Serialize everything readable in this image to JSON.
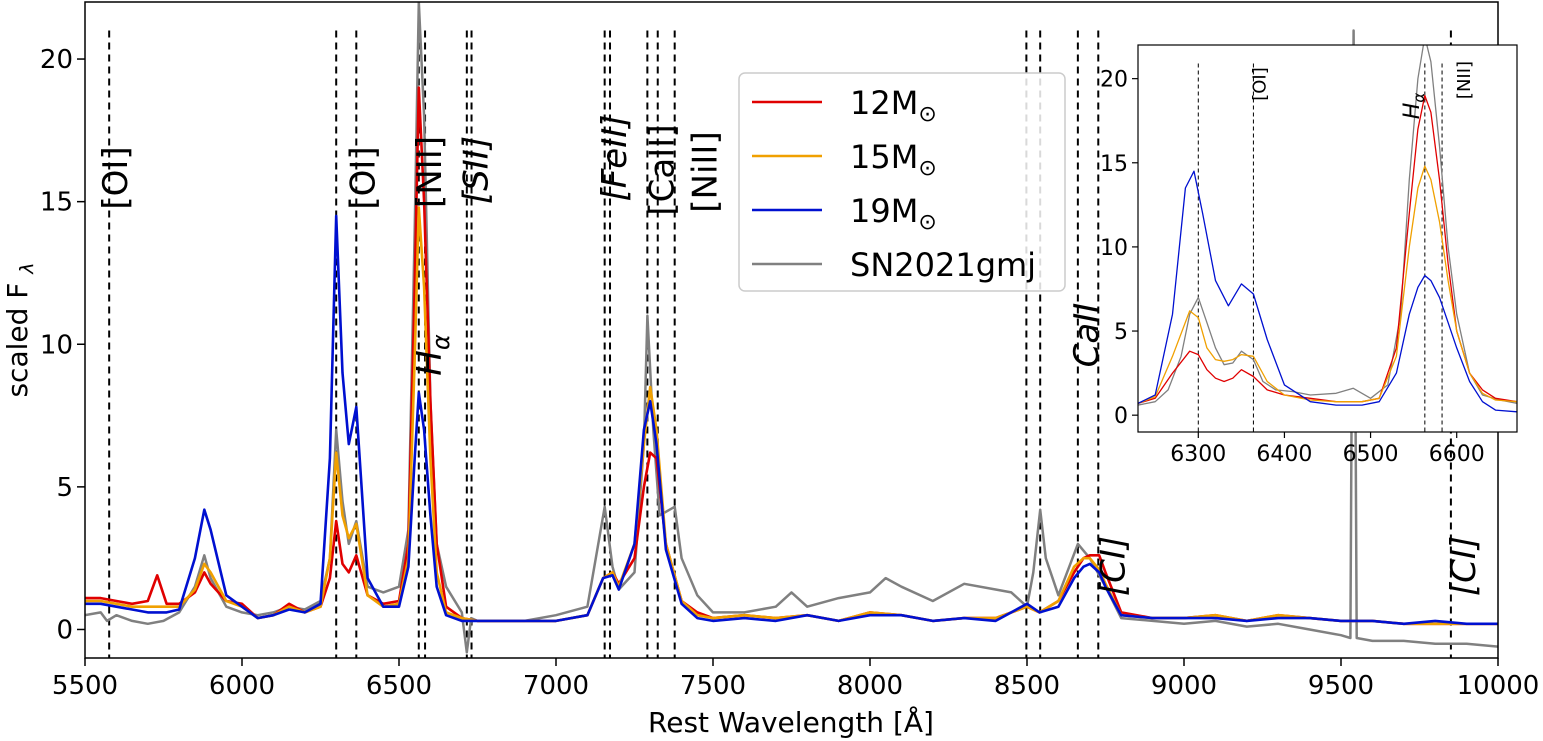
{
  "chart_data": [
    {
      "type": "line",
      "panel": "main",
      "xlabel": "Rest Wavelength [Å]",
      "ylabel": "scaled F",
      "ylabel_subscript": "λ",
      "xlim": [
        5500,
        10000
      ],
      "ylim": [
        -1,
        22
      ],
      "xticks": [
        "5500",
        "6000",
        "6500",
        "7000",
        "7500",
        "8000",
        "8500",
        "9000",
        "9500",
        "10000"
      ],
      "yticks": [
        "0",
        "5",
        "10",
        "15",
        "20"
      ],
      "legend": {
        "placement": "top-center",
        "entries": [
          {
            "label": "12M",
            "sub": "⊙",
            "color": "#e00000"
          },
          {
            "label": "15M",
            "sub": "⊙",
            "color": "#f0a000"
          },
          {
            "label": "19M",
            "sub": "⊙",
            "color": "#0010d0"
          },
          {
            "label": "SN2021gmj",
            "sub": "",
            "color": "#808080"
          }
        ]
      },
      "lines": [
        {
          "label": "[OI]",
          "wavelengths": [
            5577
          ]
        },
        {
          "label": "[OI]",
          "wavelengths": [
            6300,
            6364
          ]
        },
        {
          "label": "H",
          "sub": "α",
          "wavelengths": [
            6563
          ]
        },
        {
          "label": "[NII]",
          "wavelengths": [
            6583
          ]
        },
        {
          "label": "[SII]",
          "wavelengths": [
            6716,
            6731
          ]
        },
        {
          "label": "[FeII]",
          "wavelengths": [
            7155,
            7172
          ]
        },
        {
          "label": "[CaII]",
          "wavelengths": [
            7291,
            7324
          ]
        },
        {
          "label": "[NiII]",
          "wavelengths": [
            7378
          ]
        },
        {
          "label": "CaII",
          "wavelengths": [
            8498,
            8542,
            8662
          ]
        },
        {
          "label": "[CI]",
          "wavelengths": [
            8727
          ]
        },
        {
          "label": "[CI]",
          "wavelengths": [
            9850
          ]
        }
      ],
      "series": [
        {
          "name": "12M⊙",
          "color": "#e00000",
          "x": [
            5500,
            5550,
            5600,
            5650,
            5700,
            5730,
            5760,
            5800,
            5850,
            5880,
            5900,
            5950,
            6000,
            6050,
            6100,
            6150,
            6200,
            6250,
            6280,
            6300,
            6320,
            6340,
            6364,
            6400,
            6450,
            6500,
            6530,
            6550,
            6563,
            6580,
            6600,
            6620,
            6650,
            6700,
            6750,
            6800,
            6900,
            7000,
            7100,
            7150,
            7180,
            7200,
            7250,
            7280,
            7300,
            7320,
            7350,
            7400,
            7450,
            7500,
            7600,
            7700,
            7800,
            7900,
            8000,
            8100,
            8200,
            8300,
            8400,
            8500,
            8540,
            8600,
            8650,
            8680,
            8700,
            8730,
            8750,
            8800,
            8900,
            9000,
            9100,
            9200,
            9300,
            9400,
            9500,
            9600,
            9700,
            9800,
            9900,
            10000
          ],
          "y": [
            1.1,
            1.1,
            1.0,
            0.9,
            1.0,
            1.9,
            0.9,
            0.9,
            1.3,
            2.0,
            1.6,
            1.0,
            0.9,
            0.4,
            0.5,
            0.9,
            0.6,
            0.8,
            1.8,
            3.8,
            2.3,
            2.0,
            2.6,
            1.2,
            0.9,
            1.0,
            3.0,
            12.0,
            19.0,
            15.0,
            8.0,
            3.0,
            0.8,
            0.4,
            0.3,
            0.3,
            0.3,
            0.3,
            0.5,
            1.8,
            2.0,
            1.6,
            2.5,
            5.0,
            6.2,
            6.0,
            3.0,
            1.0,
            0.6,
            0.4,
            0.5,
            0.4,
            0.5,
            0.3,
            0.6,
            0.5,
            0.3,
            0.4,
            0.4,
            0.8,
            0.6,
            1.0,
            2.0,
            2.5,
            2.6,
            2.6,
            2.0,
            0.6,
            0.4,
            0.4,
            0.5,
            0.3,
            0.5,
            0.4,
            0.3,
            0.3,
            0.2,
            0.2,
            0.2,
            0.2
          ]
        },
        {
          "name": "15M⊙",
          "color": "#f0a000",
          "x": [
            5500,
            5550,
            5600,
            5650,
            5700,
            5730,
            5760,
            5800,
            5850,
            5880,
            5900,
            5950,
            6000,
            6050,
            6100,
            6150,
            6200,
            6250,
            6280,
            6300,
            6320,
            6340,
            6364,
            6400,
            6450,
            6500,
            6530,
            6550,
            6563,
            6580,
            6600,
            6620,
            6650,
            6700,
            6750,
            6800,
            6900,
            7000,
            7100,
            7150,
            7180,
            7200,
            7250,
            7280,
            7300,
            7320,
            7350,
            7400,
            7450,
            7500,
            7600,
            7700,
            7800,
            7900,
            8000,
            8100,
            8200,
            8300,
            8400,
            8500,
            8540,
            8600,
            8650,
            8680,
            8700,
            8730,
            8750,
            8800,
            8900,
            9000,
            9100,
            9200,
            9300,
            9400,
            9500,
            9600,
            9700,
            9800,
            9900,
            10000
          ],
          "y": [
            1.0,
            1.0,
            0.9,
            0.8,
            0.8,
            0.8,
            0.8,
            0.8,
            1.4,
            2.3,
            2.0,
            1.0,
            0.8,
            0.4,
            0.5,
            0.8,
            0.6,
            0.8,
            2.5,
            6.2,
            4.0,
            3.2,
            3.7,
            1.2,
            0.8,
            0.9,
            2.5,
            9.5,
            14.8,
            12.0,
            6.0,
            2.0,
            0.6,
            0.4,
            0.3,
            0.3,
            0.3,
            0.3,
            0.5,
            1.8,
            2.0,
            1.5,
            3.0,
            6.5,
            8.5,
            7.0,
            3.0,
            1.0,
            0.5,
            0.4,
            0.5,
            0.4,
            0.5,
            0.3,
            0.6,
            0.5,
            0.3,
            0.4,
            0.4,
            0.8,
            0.6,
            1.0,
            2.2,
            2.5,
            2.5,
            2.1,
            1.6,
            0.5,
            0.4,
            0.4,
            0.5,
            0.3,
            0.5,
            0.4,
            0.3,
            0.3,
            0.2,
            0.2,
            0.2,
            0.2
          ]
        },
        {
          "name": "19M⊙",
          "color": "#0010d0",
          "x": [
            5500,
            5550,
            5600,
            5650,
            5700,
            5730,
            5760,
            5800,
            5850,
            5880,
            5900,
            5950,
            6000,
            6050,
            6100,
            6150,
            6200,
            6250,
            6280,
            6300,
            6320,
            6340,
            6364,
            6400,
            6450,
            6500,
            6530,
            6550,
            6563,
            6580,
            6600,
            6620,
            6650,
            6700,
            6750,
            6800,
            6900,
            7000,
            7100,
            7150,
            7180,
            7200,
            7250,
            7280,
            7300,
            7320,
            7350,
            7400,
            7450,
            7500,
            7600,
            7700,
            7800,
            7900,
            8000,
            8100,
            8200,
            8300,
            8400,
            8500,
            8540,
            8600,
            8650,
            8680,
            8700,
            8730,
            8750,
            8800,
            8900,
            9000,
            9100,
            9200,
            9300,
            9400,
            9500,
            9600,
            9700,
            9800,
            9900,
            10000
          ],
          "y": [
            0.9,
            0.9,
            0.8,
            0.7,
            0.6,
            0.6,
            0.6,
            0.7,
            2.5,
            4.2,
            3.5,
            1.2,
            0.8,
            0.4,
            0.5,
            0.7,
            0.6,
            0.9,
            6.0,
            14.5,
            9.0,
            6.5,
            7.8,
            1.8,
            0.8,
            0.8,
            2.2,
            6.0,
            8.3,
            7.0,
            4.0,
            1.5,
            0.5,
            0.3,
            0.3,
            0.3,
            0.3,
            0.3,
            0.5,
            1.8,
            1.9,
            1.4,
            3.0,
            7.0,
            8.0,
            6.5,
            2.8,
            0.9,
            0.4,
            0.3,
            0.4,
            0.3,
            0.5,
            0.3,
            0.5,
            0.5,
            0.3,
            0.4,
            0.3,
            0.9,
            0.6,
            0.8,
            1.8,
            2.2,
            2.3,
            2.0,
            1.5,
            0.5,
            0.4,
            0.4,
            0.4,
            0.3,
            0.4,
            0.4,
            0.3,
            0.3,
            0.2,
            0.3,
            0.2,
            0.2
          ]
        },
        {
          "name": "SN2021gmj",
          "color": "#808080",
          "x": [
            5500,
            5550,
            5570,
            5600,
            5650,
            5700,
            5750,
            5800,
            5850,
            5880,
            5900,
            5950,
            6000,
            6050,
            6100,
            6150,
            6200,
            6250,
            6280,
            6300,
            6320,
            6340,
            6364,
            6400,
            6450,
            6500,
            6530,
            6550,
            6563,
            6580,
            6600,
            6620,
            6650,
            6700,
            6716,
            6730,
            6750,
            6800,
            6900,
            7000,
            7100,
            7155,
            7180,
            7200,
            7250,
            7280,
            7291,
            7310,
            7330,
            7378,
            7400,
            7450,
            7500,
            7600,
            7700,
            7750,
            7800,
            7900,
            8000,
            8050,
            8100,
            8200,
            8300,
            8400,
            8450,
            8500,
            8520,
            8542,
            8560,
            8600,
            8662,
            8700,
            8750,
            8800,
            8900,
            9000,
            9100,
            9200,
            9300,
            9400,
            9500,
            9530,
            9540,
            9550,
            9600,
            9700,
            9800,
            9900,
            10000
          ],
          "y": [
            0.5,
            0.6,
            0.3,
            0.5,
            0.3,
            0.2,
            0.3,
            0.6,
            1.5,
            2.6,
            1.8,
            0.8,
            0.6,
            0.5,
            0.6,
            0.8,
            0.7,
            1.0,
            2.5,
            7.0,
            4.5,
            3.0,
            3.8,
            1.5,
            1.3,
            1.5,
            3.5,
            14.0,
            22.0,
            18.0,
            8.0,
            3.0,
            1.5,
            0.6,
            -0.8,
            0.4,
            0.3,
            0.3,
            0.3,
            0.5,
            0.8,
            4.3,
            2.2,
            1.4,
            2.0,
            6.5,
            11.0,
            7.0,
            4.0,
            4.3,
            2.5,
            1.2,
            0.6,
            0.6,
            0.8,
            1.3,
            0.8,
            1.1,
            1.3,
            1.8,
            1.5,
            1.0,
            1.6,
            1.4,
            1.3,
            0.8,
            2.0,
            4.2,
            2.5,
            1.2,
            3.0,
            2.5,
            1.5,
            0.4,
            0.3,
            0.2,
            0.3,
            0.1,
            0.2,
            0.0,
            -0.2,
            -0.3,
            21.0,
            -0.3,
            -0.4,
            -0.4,
            -0.5,
            -0.5,
            -0.6
          ]
        }
      ]
    },
    {
      "type": "line",
      "panel": "inset",
      "xlim": [
        6230,
        6670
      ],
      "ylim": [
        -1,
        22
      ],
      "xticks": [
        "6300",
        "6400",
        "6500",
        "6600"
      ],
      "yticks": [
        "0",
        "5",
        "10",
        "15",
        "20"
      ],
      "lines": [
        {
          "label": "",
          "wavelength": 6300
        },
        {
          "label": "[OI]",
          "wavelength": 6364
        },
        {
          "label": "H",
          "sub": "α",
          "wavelength": 6563
        },
        {
          "label": "[NII]",
          "wavelength": 6583
        }
      ],
      "series": [
        {
          "name": "12M⊙",
          "color": "#e00000",
          "x": [
            6230,
            6250,
            6270,
            6290,
            6300,
            6310,
            6320,
            6330,
            6340,
            6350,
            6364,
            6380,
            6400,
            6430,
            6460,
            6490,
            6510,
            6530,
            6545,
            6555,
            6563,
            6570,
            6580,
            6590,
            6600,
            6615,
            6630,
            6645,
            6670
          ],
          "y": [
            0.7,
            1.0,
            2.5,
            3.8,
            3.6,
            2.7,
            2.2,
            2.0,
            2.2,
            2.7,
            2.3,
            1.5,
            1.2,
            1.0,
            0.8,
            0.8,
            1.0,
            4.0,
            12.0,
            17.0,
            19.0,
            18.0,
            14.0,
            9.0,
            5.0,
            2.5,
            1.5,
            1.0,
            0.8
          ]
        },
        {
          "name": "15M⊙",
          "color": "#f0a000",
          "x": [
            6230,
            6250,
            6270,
            6290,
            6300,
            6310,
            6320,
            6330,
            6340,
            6350,
            6364,
            6380,
            6400,
            6430,
            6460,
            6490,
            6510,
            6530,
            6545,
            6555,
            6563,
            6570,
            6580,
            6590,
            6600,
            6615,
            6630,
            6645,
            6670
          ],
          "y": [
            0.7,
            1.1,
            3.5,
            6.2,
            5.8,
            4.0,
            3.3,
            3.2,
            3.3,
            3.6,
            3.5,
            2.0,
            1.2,
            0.9,
            0.8,
            0.8,
            1.0,
            3.5,
            10.0,
            13.5,
            14.8,
            14.0,
            11.5,
            8.0,
            5.0,
            2.5,
            1.3,
            0.9,
            0.8
          ]
        },
        {
          "name": "19M⊙",
          "color": "#0010d0",
          "x": [
            6230,
            6250,
            6270,
            6285,
            6295,
            6305,
            6320,
            6335,
            6350,
            6364,
            6380,
            6400,
            6430,
            6460,
            6490,
            6510,
            6530,
            6545,
            6555,
            6563,
            6570,
            6580,
            6590,
            6600,
            6615,
            6630,
            6645,
            6670
          ],
          "y": [
            0.7,
            1.2,
            6.0,
            13.5,
            14.5,
            12.0,
            8.0,
            6.5,
            7.8,
            7.2,
            4.5,
            1.8,
            0.8,
            0.6,
            0.6,
            0.8,
            2.5,
            6.0,
            7.6,
            8.3,
            8.0,
            7.0,
            5.5,
            4.0,
            2.0,
            0.8,
            0.3,
            0.2
          ]
        },
        {
          "name": "SN2021gmj",
          "color": "#808080",
          "x": [
            6230,
            6250,
            6265,
            6280,
            6290,
            6300,
            6310,
            6320,
            6330,
            6340,
            6350,
            6364,
            6375,
            6390,
            6410,
            6430,
            6460,
            6480,
            6500,
            6520,
            6535,
            6545,
            6555,
            6563,
            6570,
            6580,
            6590,
            6600,
            6615,
            6630,
            6650,
            6670
          ],
          "y": [
            0.6,
            0.8,
            1.5,
            3.5,
            6.0,
            7.0,
            5.5,
            4.0,
            3.0,
            3.1,
            3.8,
            3.3,
            2.0,
            1.5,
            1.4,
            1.2,
            1.3,
            1.6,
            1.0,
            1.8,
            6.0,
            14.0,
            20.0,
            22.5,
            21.0,
            16.0,
            10.0,
            6.0,
            2.5,
            1.2,
            0.9,
            0.7
          ]
        }
      ]
    }
  ]
}
